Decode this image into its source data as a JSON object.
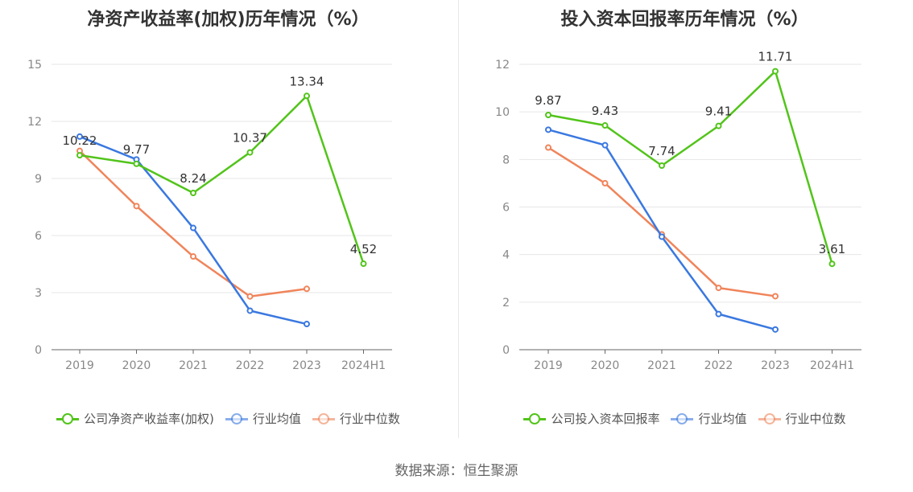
{
  "source": "数据来源：恒生聚源",
  "chart_data": [
    {
      "type": "line",
      "title": "净资产收益率(加权)历年情况（%）",
      "categories": [
        "2019",
        "2020",
        "2021",
        "2022",
        "2023",
        "2024H1"
      ],
      "ylim": [
        0,
        15
      ],
      "yticks": [
        0,
        3,
        6,
        9,
        12,
        15
      ],
      "ytick_labels": [
        "0",
        "3",
        "6",
        "9",
        "12",
        "15"
      ],
      "grid": true,
      "legend_position": "bottom",
      "series": [
        {
          "name": "公司净资产收益率(加权)",
          "color": "#52c41a",
          "values": [
            10.22,
            9.77,
            8.24,
            10.37,
            13.34,
            4.52
          ],
          "data_labels": [
            "10.22",
            "9.77",
            "8.24",
            "10.37",
            "13.34",
            "4.52"
          ]
        },
        {
          "name": "行业均值",
          "color": "#3a78e0",
          "values": [
            11.2,
            10.0,
            6.4,
            2.05,
            1.35,
            null
          ]
        },
        {
          "name": "行业中位数",
          "color": "#f0845a",
          "values": [
            10.45,
            7.55,
            4.9,
            2.8,
            3.2,
            null
          ]
        }
      ]
    },
    {
      "type": "line",
      "title": "投入资本回报率历年情况（%）",
      "categories": [
        "2019",
        "2020",
        "2021",
        "2022",
        "2023",
        "2024H1"
      ],
      "ylim": [
        0,
        12
      ],
      "yticks": [
        0,
        2,
        4,
        6,
        8,
        10,
        12
      ],
      "ytick_labels": [
        "0",
        "2",
        "4",
        "6",
        "8",
        "10",
        "12"
      ],
      "grid": true,
      "legend_position": "bottom",
      "series": [
        {
          "name": "公司投入资本回报率",
          "color": "#52c41a",
          "values": [
            9.87,
            9.43,
            7.74,
            9.41,
            11.71,
            3.61
          ],
          "data_labels": [
            "9.87",
            "9.43",
            "7.74",
            "9.41",
            "11.71",
            "3.61"
          ]
        },
        {
          "name": "行业均值",
          "color": "#3a78e0",
          "values": [
            9.25,
            8.6,
            4.75,
            1.5,
            0.85,
            null
          ]
        },
        {
          "name": "行业中位数",
          "color": "#f0845a",
          "values": [
            8.5,
            7.0,
            4.85,
            2.6,
            2.25,
            null
          ]
        }
      ]
    }
  ]
}
